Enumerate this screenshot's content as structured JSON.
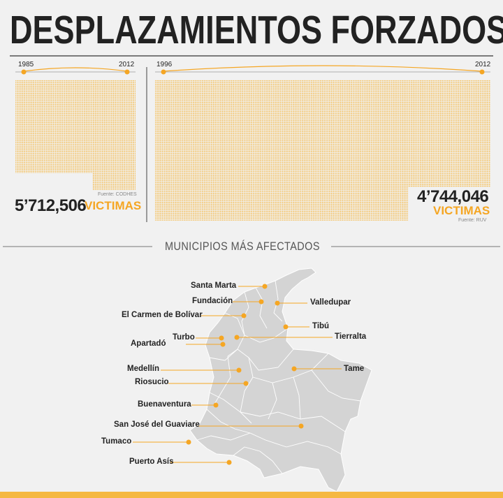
{
  "title": "DESPLAZAMIENTOS FORZADOS",
  "colors": {
    "accent": "#f5a623",
    "dots": "#f5b843",
    "map": "#d4d4d4",
    "text": "#222222"
  },
  "left_panel": {
    "year_start": "1985",
    "year_end": "2012",
    "source": "Fuente: CODHES",
    "total": "5’712,506",
    "label": "VICTIMAS"
  },
  "right_panel": {
    "year_start": "1996",
    "year_end": "2012",
    "source": "Fuente: RUV",
    "total": "4’744,046",
    "label": "VICTIMAS"
  },
  "section": {
    "title": "MUNICIPIOS MÁS AFECTADOS"
  },
  "municipios": [
    "Santa Marta",
    "Fundación",
    "Valledupar",
    "El Carmen de Bolívar",
    "Tibú",
    "Turbo",
    "Tierralta",
    "Apartadó",
    "Medellín",
    "Tame",
    "Riosucio",
    "Buenaventura",
    "San José del Guaviare",
    "Tumaco",
    "Puerto Asís"
  ]
}
